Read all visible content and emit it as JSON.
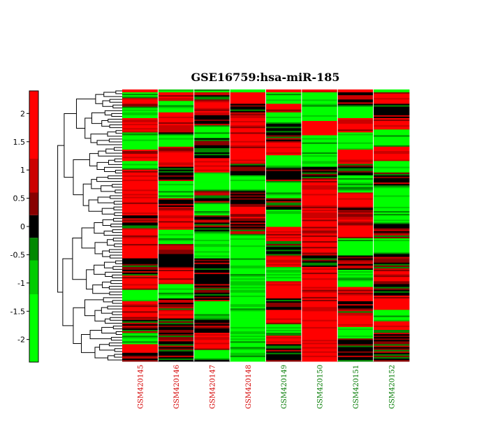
{
  "chart_data": {
    "type": "heatmap",
    "title": "GSE16759:hsa-miR-185",
    "columns": [
      {
        "label": "GSM420145",
        "color": "#d40000"
      },
      {
        "label": "GSM420146",
        "color": "#d40000"
      },
      {
        "label": "GSM420147",
        "color": "#d40000"
      },
      {
        "label": "GSM420148",
        "color": "#d40000"
      },
      {
        "label": "GSM420149",
        "color": "#007a00"
      },
      {
        "label": "GSM420150",
        "color": "#007a00"
      },
      {
        "label": "GSM420151",
        "color": "#007a00"
      },
      {
        "label": "GSM420152",
        "color": "#007a00"
      }
    ],
    "colorbar": {
      "range": [
        -2.4,
        2.4
      ],
      "ticks": [
        2,
        1.5,
        1,
        0.5,
        0,
        -0.5,
        -1,
        -1.5,
        -2
      ],
      "tick_labels": [
        "2",
        "1.5",
        "1",
        "0.5",
        "0",
        "-0.5",
        "-1",
        "-1.5",
        "-2"
      ],
      "colors": [
        "#00ff00",
        "#00cc00",
        "#008800",
        "#000000",
        "#880000",
        "#cc0000",
        "#ff0000"
      ],
      "steps": [
        {
          "from": -2.4,
          "to": -1.2,
          "color": "#00ff00"
        },
        {
          "from": -1.2,
          "to": -0.6,
          "color": "#00cc00"
        },
        {
          "from": -0.6,
          "to": -0.2,
          "color": "#008800"
        },
        {
          "from": -0.2,
          "to": 0.2,
          "color": "#000000"
        },
        {
          "from": 0.2,
          "to": 0.6,
          "color": "#880000"
        },
        {
          "from": 0.6,
          "to": 1.2,
          "color": "#cc0000"
        },
        {
          "from": 1.2,
          "to": 2.4,
          "color": "#ff0000"
        }
      ]
    },
    "row_dendrogram": true,
    "column_blocks": [
      [
        [
          2,
          "+"
        ],
        [
          4,
          "-"
        ],
        [
          6,
          "+"
        ],
        [
          8,
          "-"
        ],
        [
          10,
          "+"
        ],
        [
          12,
          "-"
        ],
        [
          8,
          "+"
        ],
        [
          6,
          "-"
        ],
        [
          14,
          "+"
        ],
        [
          18,
          "+"
        ],
        [
          10,
          "0"
        ],
        [
          20,
          "+"
        ],
        [
          12,
          "0"
        ],
        [
          10,
          "+"
        ],
        [
          8,
          "-"
        ],
        [
          12,
          "+"
        ],
        [
          10,
          "0"
        ],
        [
          8,
          "-"
        ],
        [
          6,
          "+"
        ]
      ],
      [
        [
          2,
          "-"
        ],
        [
          6,
          "+"
        ],
        [
          8,
          "-"
        ],
        [
          10,
          "+"
        ],
        [
          6,
          "0"
        ],
        [
          8,
          "-"
        ],
        [
          14,
          "+"
        ],
        [
          10,
          "0"
        ],
        [
          12,
          "-"
        ],
        [
          8,
          "0"
        ],
        [
          14,
          "+"
        ],
        [
          10,
          "-"
        ],
        [
          16,
          "0"
        ],
        [
          12,
          "+"
        ],
        [
          10,
          "-"
        ],
        [
          8,
          "0"
        ],
        [
          6,
          "+"
        ]
      ],
      [
        [
          2,
          "-"
        ],
        [
          6,
          "0"
        ],
        [
          8,
          "+"
        ],
        [
          10,
          "0"
        ],
        [
          8,
          "-"
        ],
        [
          14,
          "0"
        ],
        [
          10,
          "+"
        ],
        [
          12,
          "-"
        ],
        [
          10,
          "0"
        ],
        [
          8,
          "-"
        ],
        [
          12,
          "0"
        ],
        [
          18,
          "-"
        ],
        [
          6,
          "0"
        ],
        [
          24,
          "0"
        ],
        [
          12,
          "-"
        ],
        [
          10,
          "0"
        ],
        [
          12,
          "+"
        ],
        [
          6,
          "-"
        ]
      ],
      [
        [
          2,
          "-"
        ],
        [
          8,
          "+"
        ],
        [
          6,
          "0"
        ],
        [
          10,
          "+"
        ],
        [
          26,
          "+"
        ],
        [
          8,
          "0"
        ],
        [
          10,
          "-"
        ],
        [
          12,
          "0"
        ],
        [
          8,
          "+"
        ],
        [
          12,
          "0"
        ],
        [
          30,
          "-"
        ],
        [
          10,
          "-"
        ],
        [
          40,
          "-"
        ],
        [
          16,
          "-"
        ]
      ],
      [
        [
          2,
          "+"
        ],
        [
          8,
          "-"
        ],
        [
          6,
          "+"
        ],
        [
          8,
          "-"
        ],
        [
          12,
          "0"
        ],
        [
          10,
          "+"
        ],
        [
          8,
          "-"
        ],
        [
          10,
          "0"
        ],
        [
          12,
          "-"
        ],
        [
          8,
          "0"
        ],
        [
          12,
          "-"
        ],
        [
          10,
          "+"
        ],
        [
          10,
          "0"
        ],
        [
          8,
          "+"
        ],
        [
          10,
          "-"
        ],
        [
          12,
          "+"
        ],
        [
          8,
          "0"
        ],
        [
          10,
          "+"
        ],
        [
          8,
          "-"
        ],
        [
          6,
          "+"
        ]
      ],
      [
        [
          2,
          "+"
        ],
        [
          20,
          "-"
        ],
        [
          10,
          "+"
        ],
        [
          10,
          "-"
        ],
        [
          12,
          "-"
        ],
        [
          8,
          "0"
        ],
        [
          12,
          "+"
        ],
        [
          40,
          "+"
        ],
        [
          10,
          "0"
        ],
        [
          18,
          "+"
        ],
        [
          22,
          "+"
        ],
        [
          10,
          "+"
        ],
        [
          12,
          "+"
        ],
        [
          8,
          "+"
        ]
      ],
      [
        [
          2,
          "+"
        ],
        [
          10,
          "0"
        ],
        [
          8,
          "-"
        ],
        [
          10,
          "+"
        ],
        [
          12,
          "-"
        ],
        [
          10,
          "+"
        ],
        [
          8,
          "0"
        ],
        [
          12,
          "-"
        ],
        [
          10,
          "+"
        ],
        [
          8,
          "0"
        ],
        [
          14,
          "+"
        ],
        [
          12,
          "-"
        ],
        [
          10,
          "0"
        ],
        [
          12,
          "-"
        ],
        [
          10,
          "+"
        ],
        [
          8,
          "0"
        ],
        [
          10,
          "+"
        ],
        [
          8,
          "-"
        ]
      ],
      [
        [
          2,
          "-"
        ],
        [
          8,
          "+"
        ],
        [
          10,
          "0"
        ],
        [
          8,
          "+"
        ],
        [
          12,
          "-"
        ],
        [
          10,
          "+"
        ],
        [
          8,
          "-"
        ],
        [
          10,
          "0"
        ],
        [
          14,
          "-"
        ],
        [
          12,
          "-"
        ],
        [
          10,
          "0"
        ],
        [
          10,
          "-"
        ],
        [
          12,
          "0"
        ],
        [
          10,
          "+"
        ],
        [
          8,
          "0"
        ],
        [
          10,
          "+"
        ],
        [
          8,
          "-"
        ],
        [
          6,
          "+"
        ]
      ]
    ]
  }
}
